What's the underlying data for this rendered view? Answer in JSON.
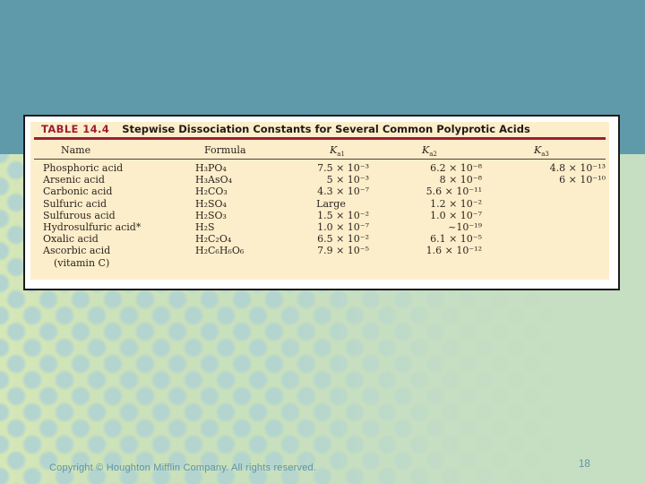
{
  "slide": {
    "footer": {
      "copyright": "Copyright © Houghton Mifflin Company. All rights reserved.",
      "page_number": "18"
    },
    "colors": {
      "top_band": "#5f9aab",
      "background_green": "#c6dec2",
      "dots": "#b4d5cf",
      "paper": "#fdeecb",
      "maroon": "#9d1d33",
      "footer_text": "#5f93a6"
    }
  },
  "table": {
    "label": "TABLE 14.4",
    "title": "Stepwise Dissociation Constants for Several Common Polyprotic Acids",
    "columns": [
      {
        "label": "Name"
      },
      {
        "label": "Formula"
      },
      {
        "base": "K",
        "sub": "a1"
      },
      {
        "base": "K",
        "sub": "a2"
      },
      {
        "base": "K",
        "sub": "a3"
      }
    ],
    "rows": [
      {
        "name": "Phosphoric acid",
        "formula": "H₃PO₄",
        "ka1": "7.5 × 10⁻³",
        "ka2": "6.2 × 10⁻⁸",
        "ka3": "4.8 × 10⁻¹³"
      },
      {
        "name": "Arsenic acid",
        "formula": "H₃AsO₄",
        "ka1": "5 × 10⁻³",
        "ka2": "8 × 10⁻⁸",
        "ka3": "6 × 10⁻¹⁰"
      },
      {
        "name": "Carbonic acid",
        "formula": "H₂CO₃",
        "ka1": "4.3 × 10⁻⁷",
        "ka2": "5.6 × 10⁻¹¹",
        "ka3": ""
      },
      {
        "name": "Sulfuric acid",
        "formula": "H₂SO₄",
        "ka1": "Large",
        "ka2": "1.2 × 10⁻²",
        "ka3": ""
      },
      {
        "name": "Sulfurous acid",
        "formula": "H₂SO₃",
        "ka1": "1.5 × 10⁻²",
        "ka2": "1.0 × 10⁻⁷",
        "ka3": ""
      },
      {
        "name": "Hydrosulfuric acid*",
        "formula": "H₂S",
        "ka1": "1.0 × 10⁻⁷",
        "ka2": "~10⁻¹⁹",
        "ka3": ""
      },
      {
        "name": "Oxalic acid",
        "formula": "H₂C₂O₄",
        "ka1": "6.5 × 10⁻²",
        "ka2": "6.1 × 10⁻⁵",
        "ka3": ""
      },
      {
        "name": "Ascorbic acid",
        "name_line2": "(vitamin C)",
        "formula": "H₂C₆H₆O₆",
        "ka1": "7.9 × 10⁻⁵",
        "ka2": "1.6 × 10⁻¹²",
        "ka3": ""
      }
    ]
  }
}
